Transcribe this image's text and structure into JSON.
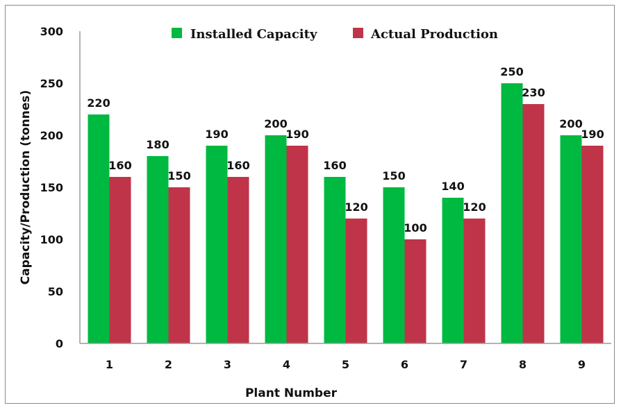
{
  "chart_data": {
    "type": "bar",
    "title": "",
    "xlabel": "Plant Number",
    "ylabel": "Capacity/Production (tonnes)",
    "categories": [
      "1",
      "2",
      "3",
      "4",
      "5",
      "6",
      "7",
      "8",
      "9"
    ],
    "series": [
      {
        "name": "Installed Capacity",
        "values": [
          220,
          180,
          190,
          200,
          160,
          150,
          140,
          250,
          200
        ],
        "color": "#00b940"
      },
      {
        "name": "Actual Production",
        "values": [
          160,
          150,
          160,
          190,
          120,
          100,
          120,
          230,
          190
        ],
        "color": "#c0344a"
      }
    ],
    "ylim": [
      0,
      300
    ],
    "yticks": [
      0,
      50,
      100,
      150,
      200,
      250,
      300
    ],
    "grid": false,
    "legend": "top"
  }
}
